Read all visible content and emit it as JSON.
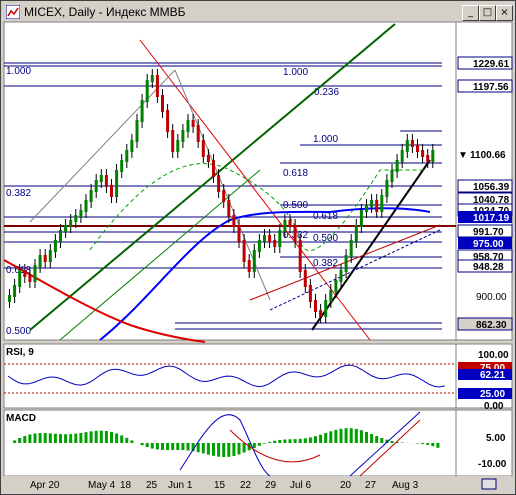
{
  "window": {
    "title": "MICEX, Daily - Индекс ММВБ",
    "buttons": {
      "minimize": "_",
      "maximize": "□",
      "close": "×"
    }
  },
  "main_panel": {
    "fib_top": {
      "left_label": "1.000",
      "mid_label": "1.000",
      "mid2_label": "0.236"
    },
    "fib_mid": {
      "l1": "1.000",
      "l2": "0.618",
      "l3": "0.500",
      "l4": "0.618",
      "l5": "0.382",
      "l6": "0.500",
      "l7": "0.382"
    },
    "left_labels": {
      "a": "0.382",
      "b": "0.618",
      "c": "0.500"
    },
    "price_labels": [
      "1229.61",
      "1197.56",
      "1100.66",
      "1056.39",
      "1040.78",
      "1024.70",
      "1017.19",
      "991.70",
      "975.00",
      "958.70",
      "948.28",
      "900.00",
      "862.30"
    ],
    "current_price": "1100.66"
  },
  "rsi_panel": {
    "label": "RSI, 9",
    "levels": [
      "100.00",
      "75.00",
      "62.21",
      "25.00",
      "0.00"
    ]
  },
  "macd_panel": {
    "label": "MACD",
    "levels": [
      "5.00",
      "-10.00"
    ]
  },
  "x_axis": {
    "labels": [
      "Apr 20",
      "May 4",
      "18",
      "25",
      "Jun 1",
      "15",
      "22",
      "29",
      "Jul 6",
      "20",
      "27",
      "Aug 3"
    ]
  },
  "colors": {
    "bull": "#008000",
    "bear": "#c00000",
    "ma_blue": "#0000ff",
    "ma_red": "#e00000",
    "trend_green": "#006400",
    "rsi_line": "#0000c0",
    "macd_hist": "#00a000"
  }
}
